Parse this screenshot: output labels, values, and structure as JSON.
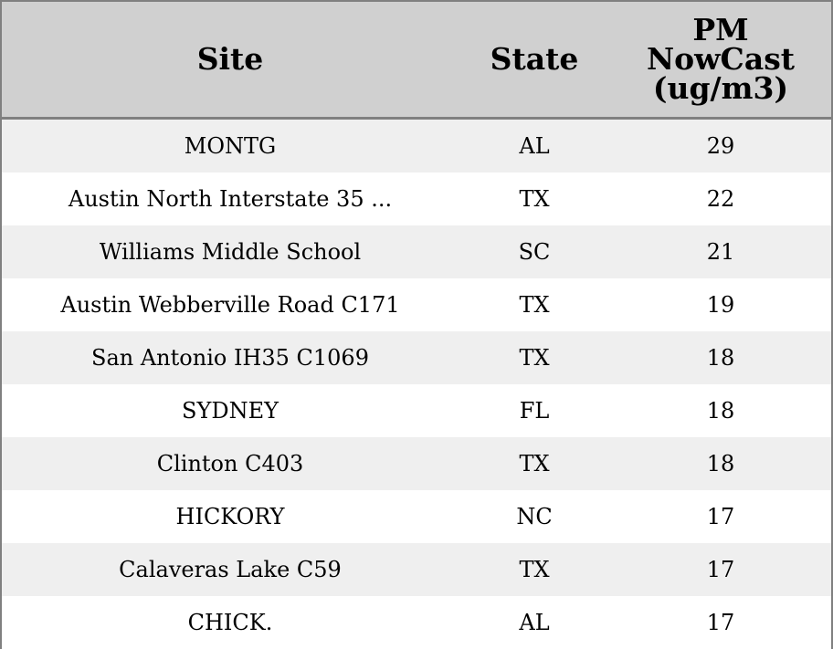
{
  "table": {
    "headers": [
      "Site",
      "State",
      "PM NowCast (ug/m3)"
    ],
    "header_lines_pm": [
      "PM",
      "NowCast",
      "(ug/m3)"
    ],
    "rows": [
      {
        "site": "MONTG",
        "state": "AL",
        "pm": "29"
      },
      {
        "site": "Austin North Interstate 35 ...",
        "state": "TX",
        "pm": "22"
      },
      {
        "site": "Williams Middle School",
        "state": "SC",
        "pm": "21"
      },
      {
        "site": "Austin Webberville Road C171",
        "state": "TX",
        "pm": "19"
      },
      {
        "site": "San Antonio IH35 C1069",
        "state": "TX",
        "pm": "18"
      },
      {
        "site": "SYDNEY",
        "state": "FL",
        "pm": "18"
      },
      {
        "site": "Clinton C403",
        "state": "TX",
        "pm": "18"
      },
      {
        "site": "HICKORY",
        "state": "NC",
        "pm": "17"
      },
      {
        "site": "Calaveras Lake C59",
        "state": "TX",
        "pm": "17"
      },
      {
        "site": "CHICK.",
        "state": "AL",
        "pm": "17"
      }
    ]
  },
  "colors": {
    "header_bg": "#d0d0d0",
    "stripe": "#efefef",
    "border": "#808080"
  }
}
